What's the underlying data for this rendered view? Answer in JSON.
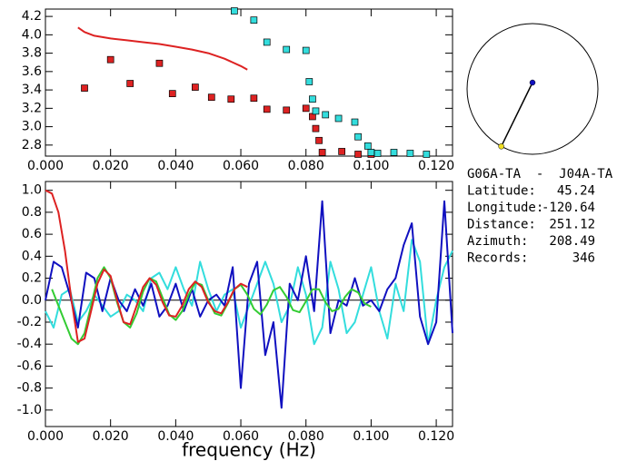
{
  "chart_data": [
    {
      "type": "scatter",
      "xlim": [
        0,
        0.125
      ],
      "ylim": [
        2.68,
        4.28
      ],
      "xticks": [
        {
          "value": 0,
          "label": "0.000"
        },
        {
          "value": 0.02,
          "label": "0.020"
        },
        {
          "value": 0.04,
          "label": "0.040"
        },
        {
          "value": 0.06,
          "label": "0.060"
        },
        {
          "value": 0.08,
          "label": "0.080"
        },
        {
          "value": 0.1,
          "label": "0.100"
        },
        {
          "value": 0.12,
          "label": "0.120"
        }
      ],
      "yticks": [
        2.8,
        {
          "value": 3,
          "label": "3.0"
        },
        3.2,
        3.4,
        3.6,
        3.8,
        {
          "value": 4,
          "label": "4.0"
        },
        4.2
      ],
      "series": [
        {
          "mode": "line",
          "color": "#dd2222",
          "x": [
            0.01,
            0.012,
            0.015,
            0.02,
            0.025,
            0.03,
            0.035,
            0.04,
            0.045,
            0.05,
            0.055,
            0.06,
            0.062
          ],
          "values": [
            4.08,
            4.03,
            3.99,
            3.96,
            3.94,
            3.92,
            3.9,
            3.87,
            3.84,
            3.8,
            3.74,
            3.66,
            3.62
          ]
        },
        {
          "mode": "markers",
          "color": "#dd2222",
          "x": [
            0.012,
            0.02,
            0.026,
            0.035,
            0.039,
            0.046,
            0.051,
            0.057,
            0.064,
            0.068,
            0.074,
            0.08,
            0.082,
            0.083,
            0.084,
            0.085,
            0.091,
            0.096,
            0.1
          ],
          "values": [
            3.42,
            3.73,
            3.47,
            3.69,
            3.36,
            3.43,
            3.32,
            3.3,
            3.31,
            3.19,
            3.18,
            3.2,
            3.11,
            2.98,
            2.85,
            2.72,
            2.73,
            2.7,
            2.7
          ]
        },
        {
          "mode": "markers",
          "color": "#33dddd",
          "x": [
            0.058,
            0.064,
            0.068,
            0.074,
            0.08,
            0.081,
            0.082,
            0.083,
            0.086,
            0.09,
            0.095,
            0.096,
            0.099,
            0.1,
            0.102,
            0.107,
            0.112,
            0.117
          ],
          "values": [
            4.26,
            4.16,
            3.92,
            3.84,
            3.83,
            3.49,
            3.3,
            3.17,
            3.13,
            3.09,
            3.05,
            2.89,
            2.79,
            2.72,
            2.71,
            2.72,
            2.71,
            2.7
          ]
        }
      ]
    },
    {
      "type": "line",
      "x_label": "frequency (Hz)",
      "xlim": [
        0,
        0.125
      ],
      "ylim": [
        -1.15,
        1.08
      ],
      "zero_line": true,
      "xticks": [
        {
          "value": 0,
          "label": "0.000"
        },
        {
          "value": 0.02,
          "label": "0.020"
        },
        {
          "value": 0.04,
          "label": "0.040"
        },
        {
          "value": 0.06,
          "label": "0.060"
        },
        {
          "value": 0.08,
          "label": "0.080"
        },
        {
          "value": 0.1,
          "label": "0.100"
        },
        {
          "value": 0.12,
          "label": "0.120"
        }
      ],
      "yticks": [
        {
          "value": -1,
          "label": "-1.0"
        },
        -0.8,
        -0.6,
        -0.4,
        -0.2,
        {
          "value": 0,
          "label": "0.0"
        },
        0.2,
        0.4,
        0.6,
        0.8,
        {
          "value": 1,
          "label": "1.0"
        }
      ],
      "series": [
        {
          "color": "#33dddd",
          "x": [
            0,
            0.0025,
            0.005,
            0.0075,
            0.01,
            0.0125,
            0.015,
            0.0175,
            0.02,
            0.0225,
            0.025,
            0.0275,
            0.03,
            0.0325,
            0.035,
            0.0375,
            0.04,
            0.0425,
            0.045,
            0.0475,
            0.05,
            0.0525,
            0.055,
            0.0575,
            0.06,
            0.0625,
            0.065,
            0.0675,
            0.07,
            0.0725,
            0.075,
            0.0775,
            0.08,
            0.0825,
            0.085,
            0.0875,
            0.09,
            0.0925,
            0.095,
            0.0975,
            0.1,
            0.1025,
            0.105,
            0.1075,
            0.11,
            0.1125,
            0.115,
            0.1175,
            0.12,
            0.1225,
            0.125
          ],
          "values": [
            -0.1,
            -0.25,
            0.05,
            0.1,
            -0.2,
            -0.1,
            0.05,
            -0.05,
            -0.15,
            -0.1,
            0.05,
            0,
            -0.1,
            0.2,
            0.25,
            0.1,
            0.3,
            0.1,
            -0.05,
            0.35,
            0.1,
            -0.1,
            0.05,
            0.1,
            -0.25,
            -0.05,
            0.15,
            0.35,
            0.15,
            -0.2,
            -0.05,
            0.3,
            0.05,
            -0.4,
            -0.25,
            0.35,
            0.1,
            -0.3,
            -0.2,
            0.05,
            0.3,
            -0.1,
            -0.35,
            0.15,
            -0.1,
            0.55,
            0.35,
            -0.4,
            0,
            0.3,
            0.45
          ]
        },
        {
          "color": "#1010c0",
          "x": [
            0,
            0.0025,
            0.005,
            0.0075,
            0.01,
            0.0125,
            0.015,
            0.0175,
            0.02,
            0.0225,
            0.025,
            0.0275,
            0.03,
            0.0325,
            0.035,
            0.0375,
            0.04,
            0.0425,
            0.045,
            0.0475,
            0.05,
            0.0525,
            0.055,
            0.0575,
            0.06,
            0.0625,
            0.065,
            0.0675,
            0.07,
            0.0725,
            0.075,
            0.0775,
            0.08,
            0.0825,
            0.085,
            0.0875,
            0.09,
            0.0925,
            0.095,
            0.0975,
            0.1,
            0.1025,
            0.105,
            0.1075,
            0.11,
            0.1125,
            0.115,
            0.1175,
            0.12,
            0.1225,
            0.125
          ],
          "values": [
            0,
            0.35,
            0.3,
            0.05,
            -0.25,
            0.25,
            0.2,
            -0.1,
            0.2,
            0,
            -0.1,
            0.1,
            -0.05,
            0.15,
            -0.15,
            -0.05,
            0.15,
            -0.1,
            0.1,
            -0.15,
            0,
            0.05,
            -0.05,
            0.3,
            -0.8,
            0.15,
            0.35,
            -0.5,
            -0.2,
            -0.98,
            0.15,
            0,
            0.4,
            -0.1,
            0.9,
            -0.3,
            0,
            -0.05,
            0.2,
            -0.05,
            0,
            -0.1,
            0.1,
            0.2,
            0.5,
            0.7,
            -0.15,
            -0.4,
            -0.2,
            0.9,
            -0.3
          ]
        },
        {
          "color": "#33cc33",
          "x": [
            0.002,
            0.004,
            0.006,
            0.008,
            0.01,
            0.012,
            0.014,
            0.016,
            0.018,
            0.02,
            0.022,
            0.024,
            0.026,
            0.028,
            0.03,
            0.032,
            0.034,
            0.036,
            0.038,
            0.04,
            0.042,
            0.044,
            0.046,
            0.048,
            0.05,
            0.052,
            0.054,
            0.056,
            0.058,
            0.06,
            0.062,
            0.064,
            0.066,
            0.068,
            0.07,
            0.072,
            0.074,
            0.076,
            0.078,
            0.08,
            0.082,
            0.084,
            0.086,
            0.088,
            0.09,
            0.092,
            0.094,
            0.096,
            0.098,
            0.1
          ],
          "values": [
            0.1,
            -0.05,
            -0.2,
            -0.35,
            -0.4,
            -0.3,
            -0.05,
            0.2,
            0.3,
            0.2,
            -0.02,
            -0.2,
            -0.25,
            -0.12,
            0.08,
            0.2,
            0.17,
            0.02,
            -0.13,
            -0.18,
            -0.1,
            0.05,
            0.16,
            0.14,
            0,
            -0.12,
            -0.14,
            -0.03,
            0.1,
            0.14,
            0.05,
            -0.08,
            -0.13,
            -0.04,
            0.09,
            0.12,
            0.03,
            -0.09,
            -0.11,
            -0.01,
            0.1,
            0.1,
            -0.02,
            -0.1,
            -0.08,
            0.03,
            0.1,
            0.07,
            -0.03,
            -0.06
          ]
        },
        {
          "color": "#dd2222",
          "x": [
            0,
            0.002,
            0.004,
            0.006,
            0.008,
            0.01,
            0.012,
            0.014,
            0.016,
            0.018,
            0.02,
            0.022,
            0.024,
            0.026,
            0.028,
            0.03,
            0.032,
            0.034,
            0.036,
            0.038,
            0.04,
            0.042,
            0.044,
            0.046,
            0.048,
            0.05,
            0.052,
            0.054,
            0.056,
            0.058,
            0.06,
            0.062
          ],
          "values": [
            1,
            0.97,
            0.8,
            0.45,
            0,
            -0.38,
            -0.35,
            -0.1,
            0.15,
            0.28,
            0.22,
            0,
            -0.2,
            -0.22,
            -0.05,
            0.12,
            0.2,
            0.14,
            -0.02,
            -0.14,
            -0.15,
            -0.05,
            0.1,
            0.17,
            0.12,
            -0.02,
            -0.1,
            -0.12,
            -0.02,
            0.1,
            0.15,
            0.12
          ]
        }
      ]
    }
  ],
  "info": {
    "title": "G06A-TA  -  J04A-TA",
    "rows": [
      {
        "label": "Latitude:",
        "value": 45.24
      },
      {
        "label": "Longitude:",
        "value": -120.64
      },
      {
        "label": "Distance:",
        "value": 251.12
      },
      {
        "label": "Azimuth:",
        "value": 208.49
      },
      {
        "label": "Records:",
        "value": 346
      }
    ]
  }
}
